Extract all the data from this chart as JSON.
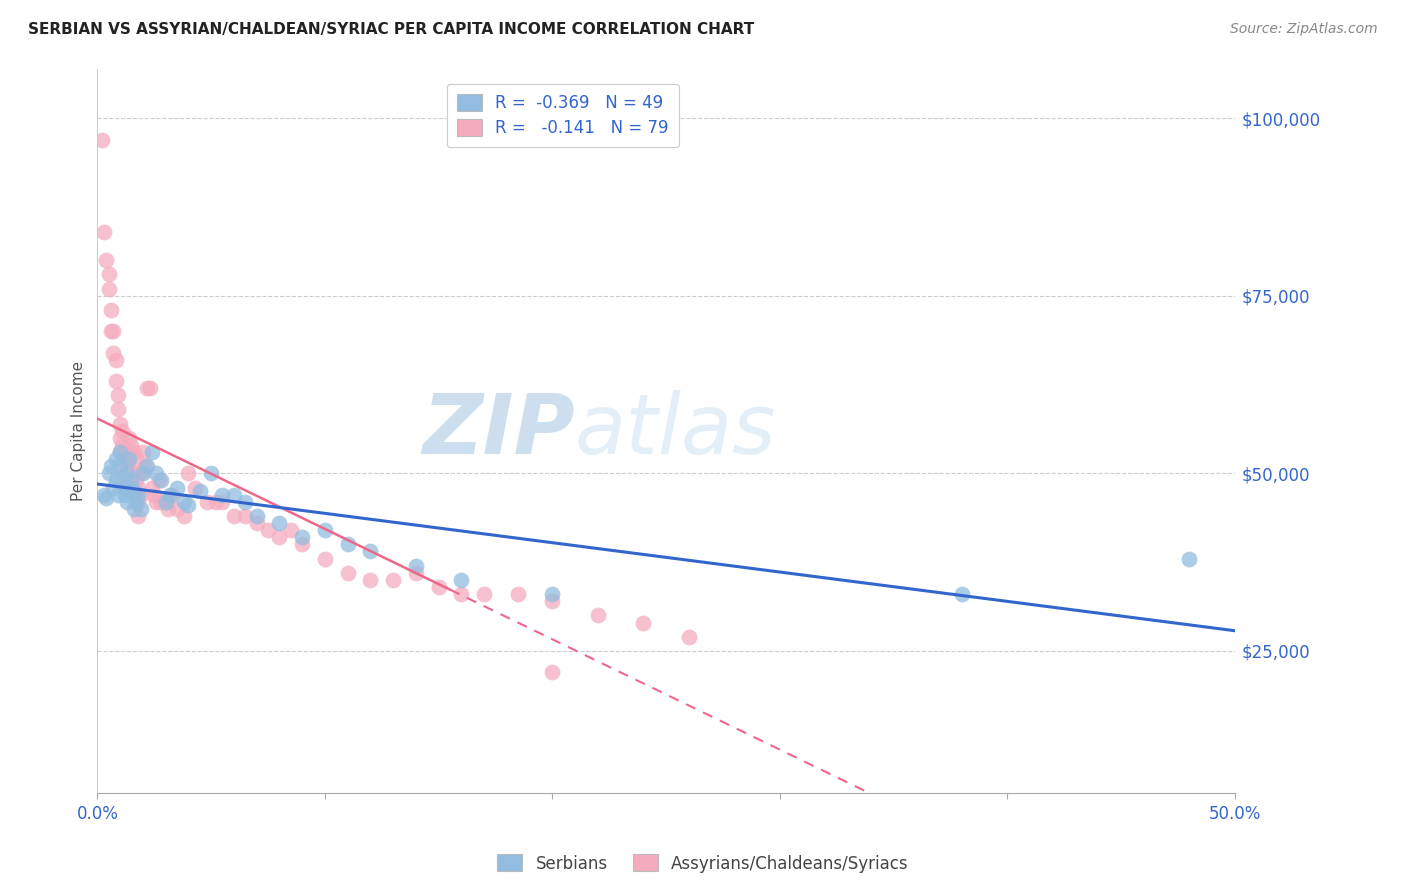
{
  "title": "SERBIAN VS ASSYRIAN/CHALDEAN/SYRIAC PER CAPITA INCOME CORRELATION CHART",
  "source": "Source: ZipAtlas.com",
  "ylabel": "Per Capita Income",
  "ytick_labels": [
    "$25,000",
    "$50,000",
    "$75,000",
    "$100,000"
  ],
  "ytick_values": [
    25000,
    50000,
    75000,
    100000
  ],
  "ymin": 5000,
  "ymax": 107000,
  "xmin": 0.0,
  "xmax": 0.5,
  "legend_blue_label": "R =  -0.369   N = 49",
  "legend_pink_label": "R =   -0.141   N = 79",
  "blue_color": "#92BDE0",
  "pink_color": "#F5ABBE",
  "blue_line_color": "#3366CC",
  "pink_line_color": "#EE6688",
  "pink_line_solid_end": 0.155,
  "watermark_zip": "ZIP",
  "watermark_atlas": "atlas",
  "legend_label_serbians": "Serbians",
  "legend_label_assyrians": "Assyrians/Chaldeans/Syriacs",
  "blue_scatter_x": [
    0.003,
    0.004,
    0.005,
    0.006,
    0.007,
    0.008,
    0.008,
    0.009,
    0.01,
    0.01,
    0.011,
    0.012,
    0.012,
    0.013,
    0.013,
    0.014,
    0.015,
    0.015,
    0.016,
    0.016,
    0.017,
    0.018,
    0.019,
    0.02,
    0.022,
    0.024,
    0.026,
    0.028,
    0.03,
    0.032,
    0.035,
    0.038,
    0.04,
    0.045,
    0.05,
    0.055,
    0.06,
    0.065,
    0.07,
    0.08,
    0.09,
    0.1,
    0.11,
    0.12,
    0.14,
    0.16,
    0.2,
    0.38,
    0.48
  ],
  "blue_scatter_y": [
    47000,
    46500,
    50000,
    51000,
    48000,
    52000,
    49000,
    47000,
    53000,
    51000,
    49500,
    48000,
    47000,
    50000,
    46000,
    52000,
    49000,
    48000,
    47500,
    45000,
    46000,
    47000,
    45000,
    50000,
    51000,
    53000,
    50000,
    49000,
    46000,
    47000,
    48000,
    46000,
    45500,
    47500,
    50000,
    47000,
    47000,
    46000,
    44000,
    43000,
    41000,
    42000,
    40000,
    39000,
    37000,
    35000,
    33000,
    33000,
    38000
  ],
  "pink_scatter_x": [
    0.002,
    0.003,
    0.004,
    0.005,
    0.005,
    0.006,
    0.006,
    0.007,
    0.007,
    0.008,
    0.008,
    0.009,
    0.009,
    0.01,
    0.01,
    0.01,
    0.011,
    0.011,
    0.012,
    0.012,
    0.012,
    0.013,
    0.013,
    0.013,
    0.014,
    0.014,
    0.014,
    0.015,
    0.015,
    0.015,
    0.016,
    0.016,
    0.017,
    0.017,
    0.018,
    0.018,
    0.018,
    0.019,
    0.019,
    0.02,
    0.021,
    0.022,
    0.023,
    0.024,
    0.025,
    0.026,
    0.027,
    0.028,
    0.03,
    0.031,
    0.033,
    0.035,
    0.038,
    0.04,
    0.043,
    0.048,
    0.052,
    0.055,
    0.06,
    0.065,
    0.07,
    0.075,
    0.08,
    0.085,
    0.09,
    0.1,
    0.11,
    0.12,
    0.13,
    0.14,
    0.15,
    0.16,
    0.17,
    0.185,
    0.2,
    0.22,
    0.24,
    0.26,
    0.2
  ],
  "pink_scatter_y": [
    97000,
    84000,
    80000,
    78000,
    76000,
    73000,
    70000,
    70000,
    67000,
    66000,
    63000,
    61000,
    59000,
    57000,
    55000,
    53000,
    56000,
    54000,
    52000,
    50000,
    48000,
    51000,
    50000,
    49000,
    55000,
    53000,
    48000,
    54000,
    50000,
    47000,
    53000,
    50000,
    52000,
    49000,
    48000,
    46000,
    44000,
    50000,
    47000,
    53000,
    51000,
    62000,
    62000,
    48000,
    47000,
    46000,
    49000,
    46000,
    46000,
    45000,
    47000,
    45000,
    44000,
    50000,
    48000,
    46000,
    46000,
    46000,
    44000,
    44000,
    43000,
    42000,
    41000,
    42000,
    40000,
    38000,
    36000,
    35000,
    35000,
    36000,
    34000,
    33000,
    33000,
    33000,
    32000,
    30000,
    29000,
    27000,
    22000
  ]
}
